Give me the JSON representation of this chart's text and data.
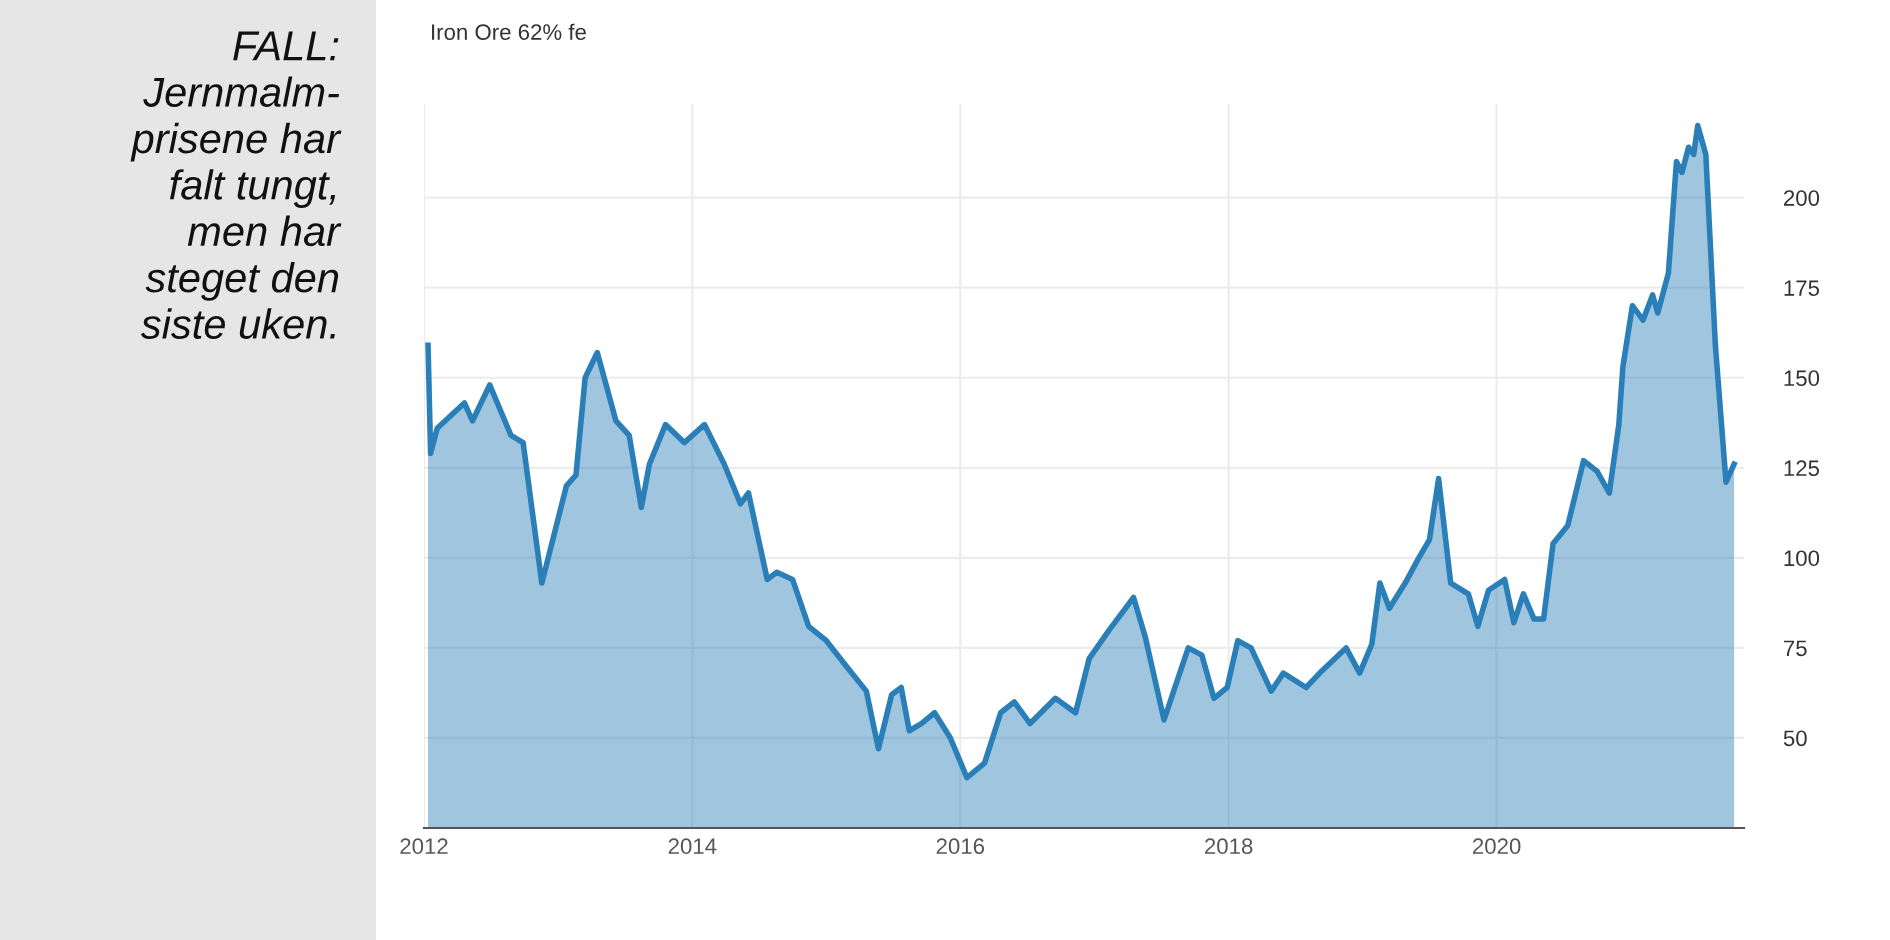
{
  "chart_data": {
    "type": "area",
    "title": "Iron Ore 62% fe",
    "annotations": [
      "FALL:\nJernmalm-\nprisene har\nfalt tungt,\nmen har\nsteget den\nsiste uken."
    ],
    "x": [
      "2012-01-12",
      "2012-01-19",
      "2012-02-06",
      "2012-04-20",
      "2012-05-12",
      "2012-06-28",
      "2012-08-25",
      "2012-09-27",
      "2012-11-17",
      "2013-01-23",
      "2013-02-18",
      "2013-03-15",
      "2013-04-17",
      "2013-06-07",
      "2013-07-13",
      "2013-08-15",
      "2013-09-06",
      "2013-10-20",
      "2013-12-10",
      "2014-02-03",
      "2014-03-29",
      "2014-05-12",
      "2014-06-03",
      "2014-07-24",
      "2014-08-19",
      "2014-10-01",
      "2014-11-14",
      "2015-01-01",
      "2015-02-24",
      "2015-04-20",
      "2015-05-23",
      "2015-06-28",
      "2015-07-24",
      "2015-08-15",
      "2015-09-17",
      "2015-10-23",
      "2015-12-05",
      "2016-01-19",
      "2016-03-07",
      "2016-04-20",
      "2016-05-27",
      "2016-07-09",
      "2016-09-16",
      "2016-11-10",
      "2016-12-17",
      "2017-02-10",
      "2017-04-17",
      "2017-05-19",
      "2017-07-09",
      "2017-09-13",
      "2017-10-20",
      "2017-11-22",
      "2017-12-28",
      "2018-01-26",
      "2018-03-03",
      "2018-04-27",
      "2018-05-30",
      "2018-07-31",
      "2018-09-06",
      "2018-11-17",
      "2018-12-24",
      "2019-01-26",
      "2019-02-17",
      "2019-03-15",
      "2019-04-27",
      "2019-06-03",
      "2019-07-02",
      "2019-07-27",
      "2019-08-29",
      "2019-10-16",
      "2019-11-11",
      "2019-12-10",
      "2020-01-23",
      "2020-02-17",
      "2020-03-14",
      "2020-04-12",
      "2020-05-08",
      "2020-06-03",
      "2020-07-13",
      "2020-08-25",
      "2020-10-01",
      "2020-11-03",
      "2020-11-29",
      "2020-12-10",
      "2021-01-05",
      "2021-02-03",
      "2021-03-01",
      "2021-03-15",
      "2021-04-13",
      "2021-05-05",
      "2021-05-20",
      "2021-06-07",
      "2021-06-21",
      "2021-07-02",
      "2021-07-24",
      "2021-08-19",
      "2021-09-17",
      "2021-10-09"
    ],
    "series": [
      {
        "color": "#2b7fb8",
        "values": [
          159,
          129,
          136,
          143,
          138,
          148,
          134,
          132,
          93,
          120,
          123,
          150,
          157,
          138,
          134,
          114,
          126,
          137,
          132,
          137,
          126,
          115,
          118,
          94,
          96,
          94,
          81,
          77,
          70,
          63,
          47,
          62,
          64,
          52,
          54,
          57,
          50,
          39,
          43,
          57,
          60,
          54,
          61,
          57,
          72,
          80,
          89,
          78,
          55,
          75,
          73,
          61,
          64,
          77,
          75,
          63,
          68,
          64,
          68,
          75,
          68,
          76,
          93,
          86,
          93,
          100,
          105,
          122,
          93,
          90,
          81,
          91,
          94,
          82,
          90,
          83,
          83,
          104,
          109,
          127,
          124,
          118,
          137,
          153,
          170,
          166,
          173,
          168,
          179,
          210,
          207,
          214,
          212,
          220,
          212,
          159,
          121,
          126
        ]
      }
    ],
    "xlim": [
      "2012-01-01",
      "2021-11-05"
    ],
    "xticks": [
      "2012",
      "2014",
      "2016",
      "2018",
      "2020"
    ],
    "ylim": [
      25,
      226
    ],
    "yticks": [
      50,
      75,
      100,
      125,
      150,
      175,
      200
    ],
    "grid": true
  }
}
